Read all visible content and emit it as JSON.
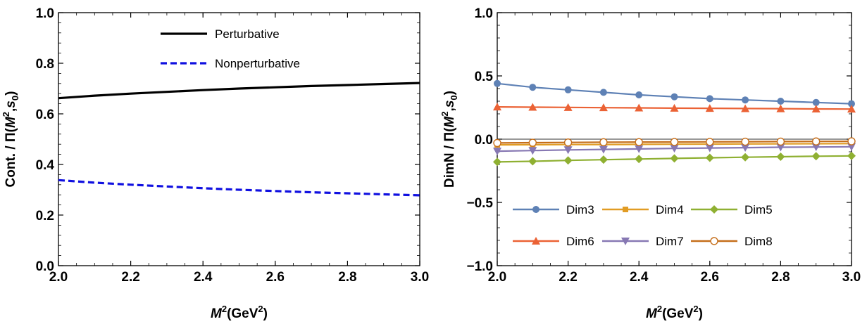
{
  "chart_data": [
    {
      "type": "line",
      "xlabel": {
        "var": "M",
        "sup": "2",
        "unit": "(GeV",
        "unit_sup": "2",
        "close": ")"
      },
      "ylabel": {
        "main": "Cont. / Π(",
        "var": "M",
        "sup": "2",
        "mid": ",",
        "s": "s",
        "sub": "0",
        "close": ")"
      },
      "xlim": [
        2.0,
        3.0
      ],
      "ylim": [
        0.0,
        1.0
      ],
      "x_ticks": [
        2.0,
        2.2,
        2.4,
        2.6,
        2.8,
        3.0
      ],
      "x_tick_labels": [
        "2.0",
        "2.2",
        "2.4",
        "2.6",
        "2.8",
        "3.0"
      ],
      "y_ticks": [
        0.0,
        0.2,
        0.4,
        0.6,
        0.8,
        1.0
      ],
      "y_tick_labels": [
        "0.0",
        "0.2",
        "0.4",
        "0.6",
        "0.8",
        "1.0"
      ],
      "legend_position": "top-center",
      "x": [
        2.0,
        2.1,
        2.2,
        2.3,
        2.4,
        2.5,
        2.6,
        2.7,
        2.8,
        2.9,
        3.0
      ],
      "series": [
        {
          "name": "Perturbative",
          "color": "#000000",
          "style": "solid",
          "values": [
            0.662,
            0.672,
            0.68,
            0.687,
            0.694,
            0.7,
            0.705,
            0.71,
            0.714,
            0.718,
            0.722
          ]
        },
        {
          "name": "Nonperturbative",
          "color": "#1010e0",
          "style": "dashed",
          "values": [
            0.338,
            0.328,
            0.32,
            0.313,
            0.306,
            0.3,
            0.295,
            0.29,
            0.286,
            0.282,
            0.278
          ]
        }
      ]
    },
    {
      "type": "line",
      "xlabel": {
        "var": "M",
        "sup": "2",
        "unit": "(GeV",
        "unit_sup": "2",
        "close": ")"
      },
      "ylabel": {
        "main": "DimN / Π(",
        "var": "M",
        "sup": "2",
        "mid": ",",
        "s": "s",
        "sub": "0",
        "close": ")"
      },
      "xlim": [
        2.0,
        3.0
      ],
      "ylim": [
        -1.0,
        1.0
      ],
      "x_ticks": [
        2.0,
        2.2,
        2.4,
        2.6,
        2.8,
        3.0
      ],
      "x_tick_labels": [
        "2.0",
        "2.2",
        "2.4",
        "2.6",
        "2.8",
        "3.0"
      ],
      "y_ticks": [
        -1.0,
        -0.5,
        0.0,
        0.5,
        1.0
      ],
      "y_tick_labels": [
        "−1.0",
        "−0.5",
        "0.0",
        "0.5",
        "1.0"
      ],
      "zero_line": true,
      "legend_position": "bottom",
      "x": [
        2.0,
        2.1,
        2.2,
        2.3,
        2.4,
        2.5,
        2.6,
        2.7,
        2.8,
        2.9,
        3.0
      ],
      "series": [
        {
          "name": "Dim3",
          "color": "#5e81b5",
          "marker": "circle",
          "values": [
            0.44,
            0.41,
            0.39,
            0.37,
            0.35,
            0.335,
            0.32,
            0.31,
            0.3,
            0.29,
            0.28
          ]
        },
        {
          "name": "Dim4",
          "color": "#e19c24",
          "marker": "square",
          "values": [
            -0.045,
            -0.044,
            -0.043,
            -0.042,
            -0.041,
            -0.04,
            -0.039,
            -0.038,
            -0.037,
            -0.036,
            -0.035
          ]
        },
        {
          "name": "Dim5",
          "color": "#8fb032",
          "marker": "diamond",
          "values": [
            -0.18,
            -0.175,
            -0.168,
            -0.162,
            -0.157,
            -0.152,
            -0.147,
            -0.143,
            -0.139,
            -0.135,
            -0.132
          ]
        },
        {
          "name": "Dim6",
          "color": "#eb6235",
          "marker": "triangle-up",
          "values": [
            0.255,
            0.253,
            0.251,
            0.249,
            0.247,
            0.245,
            0.244,
            0.242,
            0.241,
            0.239,
            0.238
          ]
        },
        {
          "name": "Dim7",
          "color": "#8778b3",
          "marker": "triangle-down",
          "values": [
            -0.095,
            -0.09,
            -0.085,
            -0.081,
            -0.077,
            -0.073,
            -0.07,
            -0.067,
            -0.064,
            -0.062,
            -0.06
          ]
        },
        {
          "name": "Dim8",
          "color": "#c56e1a",
          "marker": "open-circle",
          "values": [
            -0.03,
            -0.028,
            -0.026,
            -0.024,
            -0.023,
            -0.022,
            -0.021,
            -0.02,
            -0.019,
            -0.018,
            -0.017
          ]
        }
      ]
    }
  ]
}
